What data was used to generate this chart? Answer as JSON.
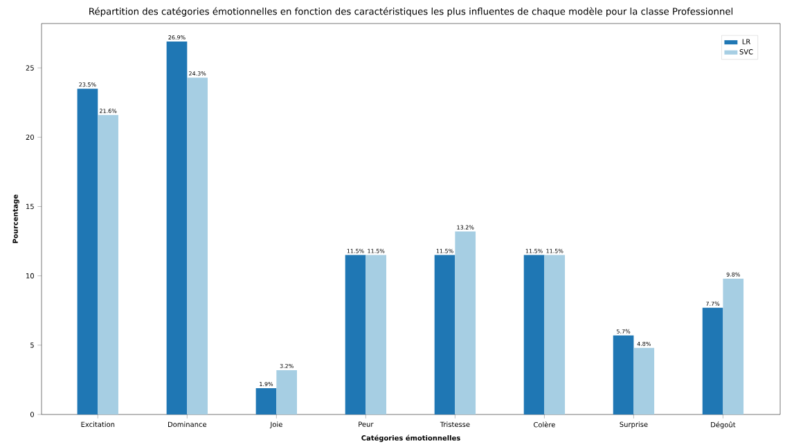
{
  "chart_data": {
    "type": "bar",
    "title": "Répartition des catégories émotionnelles en fonction des caractéristiques les plus influentes de chaque modèle pour la classe Professionnel",
    "xlabel": "Catégories émotionnelles",
    "ylabel": "Pourcentage",
    "categories": [
      "Excitation",
      "Dominance",
      "Joie",
      "Peur",
      "Tristesse",
      "Colère",
      "Surprise",
      "Dégoût"
    ],
    "series": [
      {
        "name": "LR",
        "color": "#1f77b4",
        "values": [
          23.5,
          26.9,
          1.9,
          11.5,
          11.5,
          11.5,
          5.7,
          7.7
        ],
        "value_labels": [
          "23.5%",
          "26.9%",
          "1.9%",
          "11.5%",
          "11.5%",
          "11.5%",
          "5.7%",
          "7.7%"
        ]
      },
      {
        "name": "SVC",
        "color": "#a6cee3",
        "values": [
          21.6,
          24.3,
          3.2,
          11.5,
          13.2,
          11.5,
          4.8,
          9.8
        ],
        "value_labels": [
          "21.6%",
          "24.3%",
          "3.2%",
          "11.5%",
          "13.2%",
          "11.5%",
          "4.8%",
          "9.8%"
        ]
      }
    ],
    "ylim": [
      0,
      28.2
    ],
    "yticks": [
      0,
      5,
      10,
      15,
      20,
      25
    ],
    "legend": "top right",
    "grid": false
  }
}
